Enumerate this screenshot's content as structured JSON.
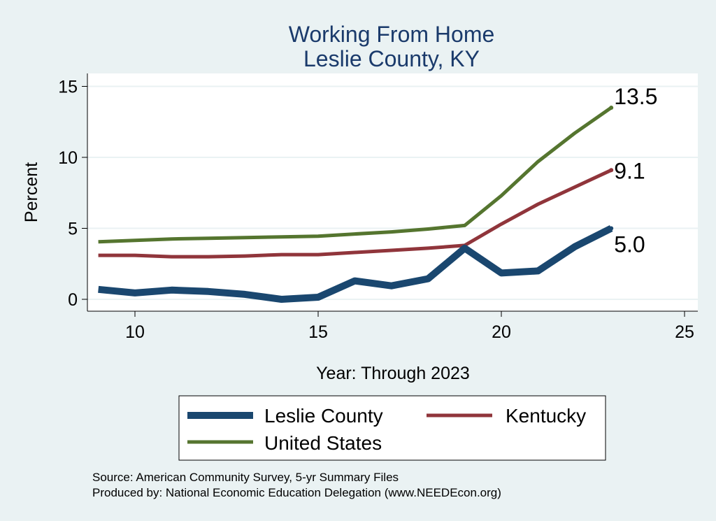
{
  "chart_data": {
    "type": "line",
    "title": "Working From Home",
    "subtitle": "Leslie County, KY",
    "xlabel": "Year: Through 2023",
    "ylabel": "Percent",
    "xlim": [
      9,
      25
    ],
    "ylim": [
      0,
      15
    ],
    "x_ticks": [
      10,
      15,
      20,
      25
    ],
    "y_ticks": [
      0,
      5,
      10,
      15
    ],
    "grid": true,
    "legend_position": "bottom",
    "series": [
      {
        "name": "Leslie County",
        "color": "#1a476f",
        "line_weight": "thick",
        "end_label": "5.0",
        "x": [
          9,
          10,
          11,
          12,
          13,
          14,
          15,
          16,
          17,
          18,
          19,
          20,
          21,
          22,
          23
        ],
        "values": [
          0.7,
          0.45,
          0.65,
          0.55,
          0.35,
          0.0,
          0.15,
          1.3,
          0.95,
          1.45,
          3.6,
          1.85,
          2.0,
          3.7,
          5.0
        ]
      },
      {
        "name": "Kentucky",
        "color": "#90353b",
        "line_weight": "medium",
        "end_label": "9.1",
        "x": [
          9,
          10,
          11,
          12,
          13,
          14,
          15,
          16,
          17,
          18,
          19,
          20,
          21,
          22,
          23
        ],
        "values": [
          3.1,
          3.1,
          3.0,
          3.0,
          3.05,
          3.15,
          3.15,
          3.3,
          3.45,
          3.6,
          3.8,
          5.3,
          6.7,
          7.9,
          9.1
        ]
      },
      {
        "name": "United States",
        "color": "#55752f",
        "line_weight": "medium",
        "end_label": "13.5",
        "x": [
          9,
          10,
          11,
          12,
          13,
          14,
          15,
          16,
          17,
          18,
          19,
          20,
          21,
          22,
          23
        ],
        "values": [
          4.05,
          4.15,
          4.25,
          4.3,
          4.35,
          4.4,
          4.45,
          4.6,
          4.75,
          4.95,
          5.2,
          7.3,
          9.7,
          11.7,
          13.5
        ]
      }
    ]
  },
  "source_lines": [
    "Source: American Community Survey, 5-yr Summary Files",
    "Produced by: National Economic Education Delegation (www.NEEDEcon.org)"
  ]
}
